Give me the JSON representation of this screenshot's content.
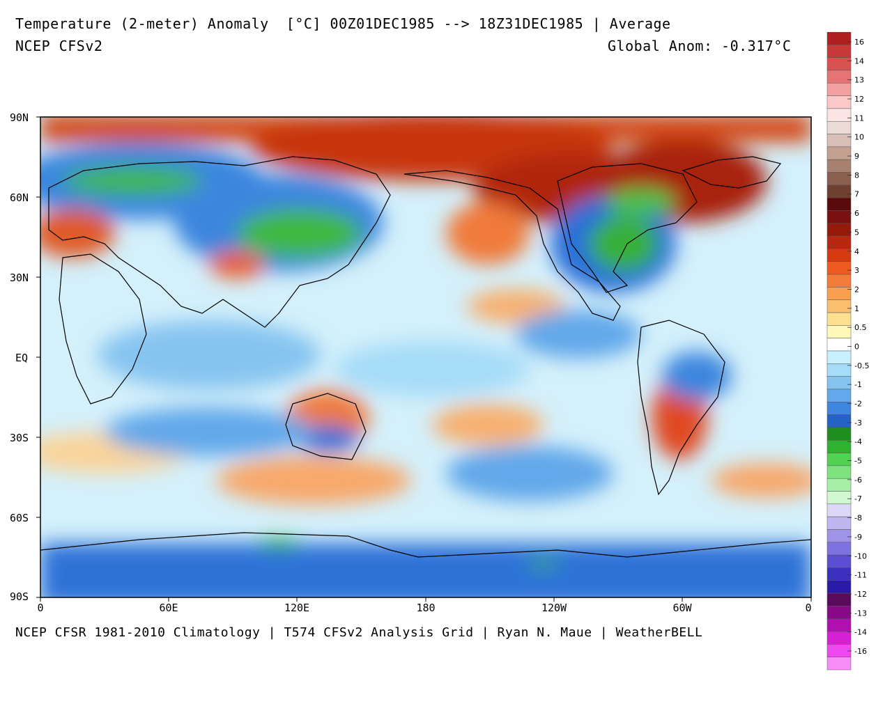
{
  "header": {
    "title": "Temperature (2-meter) Anomaly  [°C] 00Z01DEC1985 --> 18Z31DEC1985 | Average",
    "model": "NCEP CFSv2",
    "global_anom": "Global Anom: -0.317°C"
  },
  "footer": "NCEP CFSR 1981-2010 Climatology | T574 CFSv2 Analysis Grid | Ryan N. Maue | WeatherBELL",
  "map": {
    "lat_labels": [
      "90N",
      "60N",
      "30N",
      "EQ",
      "30S",
      "60S",
      "90S"
    ],
    "lon_labels": [
      "0",
      "60E",
      "120E",
      "180",
      "120W",
      "60W",
      "0"
    ]
  },
  "colorbar": {
    "labels": [
      "16",
      "14",
      "13",
      "12",
      "11",
      "10",
      "9",
      "8",
      "7",
      "6",
      "5",
      "4",
      "3",
      "2",
      "1",
      "0.5",
      "0",
      "-0.5",
      "-1",
      "-2",
      "-3",
      "-4",
      "-5",
      "-6",
      "-7",
      "-8",
      "-9",
      "-10",
      "-11",
      "-12",
      "-13",
      "-14",
      "-16"
    ],
    "colors": [
      "#b12020",
      "#c83838",
      "#d85252",
      "#e67474",
      "#f3a0a0",
      "#fbc9c9",
      "#fbe4e4",
      "#ecdcd8",
      "#d8c0b8",
      "#c4a090",
      "#a88070",
      "#8c6050",
      "#6e4030",
      "#5a0a0a",
      "#7a1010",
      "#961a0a",
      "#b82810",
      "#d63a10",
      "#ee5a20",
      "#f47c3a",
      "#f8a050",
      "#fac070",
      "#fde090",
      "#fff8b8",
      "#ffffff",
      "#c8f0ff",
      "#a6dcf8",
      "#86c4f0",
      "#62a8ea",
      "#3e86de",
      "#2462c8",
      "#1e8e1e",
      "#2fb22f",
      "#52d252",
      "#7ee27e",
      "#a8f0a8",
      "#d2f8d2",
      "#dcd8f8",
      "#c0b6f0",
      "#a094e8",
      "#7e72e0",
      "#5c4ed2",
      "#3c30c0",
      "#2a1aa8",
      "#5a0a5a",
      "#880a88",
      "#b010b0",
      "#d620d6",
      "#f048f0",
      "#f78ef7"
    ]
  }
}
